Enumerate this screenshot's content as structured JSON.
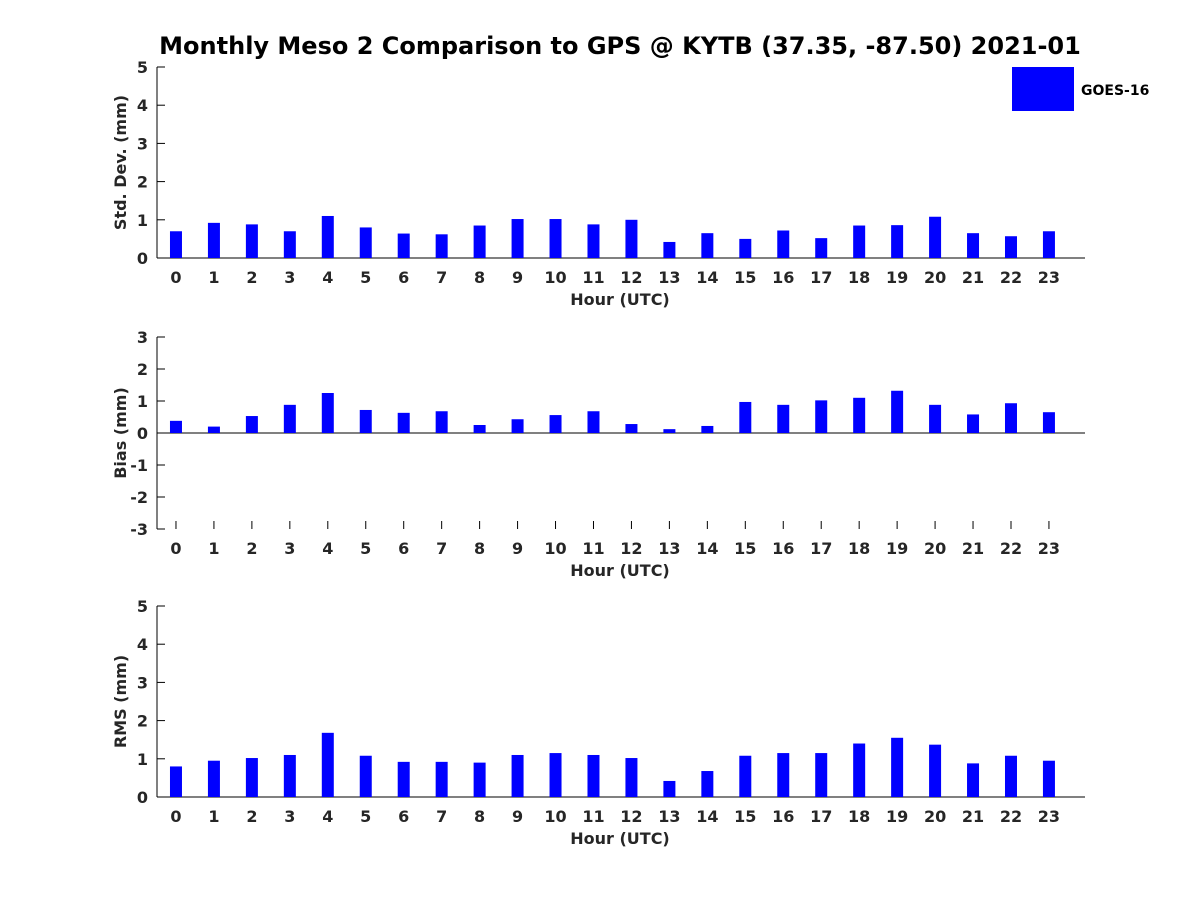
{
  "chart_data": {
    "title": "Monthly Meso 2 Comparison to GPS @ KYTB (37.35, -87.50) 2021-01",
    "legend": {
      "label": "GOES-16",
      "color": "#0000ff",
      "placement": "top-right"
    },
    "panels": [
      {
        "type": "bar",
        "ylabel": "Std. Dev. (mm)",
        "xlabel": "Hour (UTC)",
        "ylim": [
          0,
          5
        ],
        "yticks": [
          0,
          1,
          2,
          3,
          4,
          5
        ],
        "categories": [
          "0",
          "1",
          "2",
          "3",
          "4",
          "5",
          "6",
          "7",
          "8",
          "9",
          "10",
          "11",
          "12",
          "13",
          "14",
          "15",
          "16",
          "17",
          "18",
          "19",
          "20",
          "21",
          "22",
          "23"
        ],
        "series": [
          {
            "name": "GOES-16",
            "values": [
              0.7,
              0.92,
              0.88,
              0.7,
              1.1,
              0.8,
              0.64,
              0.62,
              0.85,
              1.02,
              1.02,
              0.88,
              1.0,
              0.42,
              0.65,
              0.5,
              0.72,
              0.52,
              0.85,
              0.86,
              1.08,
              0.65,
              0.57,
              0.7
            ]
          }
        ]
      },
      {
        "type": "bar",
        "ylabel": "Bias (mm)",
        "xlabel": "Hour (UTC)",
        "ylim": [
          -3,
          3
        ],
        "yticks": [
          -3,
          -2,
          -1,
          0,
          1,
          2,
          3
        ],
        "categories": [
          "0",
          "1",
          "2",
          "3",
          "4",
          "5",
          "6",
          "7",
          "8",
          "9",
          "10",
          "11",
          "12",
          "13",
          "14",
          "15",
          "16",
          "17",
          "18",
          "19",
          "20",
          "21",
          "22",
          "23"
        ],
        "series": [
          {
            "name": "GOES-16",
            "values": [
              0.38,
              0.2,
              0.53,
              0.88,
              1.25,
              0.72,
              0.63,
              0.68,
              0.25,
              0.43,
              0.56,
              0.68,
              0.28,
              0.12,
              0.22,
              0.97,
              0.88,
              1.02,
              1.1,
              1.32,
              0.88,
              0.58,
              0.93,
              0.65
            ]
          }
        ]
      },
      {
        "type": "bar",
        "ylabel": "RMS (mm)",
        "xlabel": "Hour (UTC)",
        "ylim": [
          0,
          5
        ],
        "yticks": [
          0,
          1,
          2,
          3,
          4,
          5
        ],
        "categories": [
          "0",
          "1",
          "2",
          "3",
          "4",
          "5",
          "6",
          "7",
          "8",
          "9",
          "10",
          "11",
          "12",
          "13",
          "14",
          "15",
          "16",
          "17",
          "18",
          "19",
          "20",
          "21",
          "22",
          "23"
        ],
        "series": [
          {
            "name": "GOES-16",
            "values": [
              0.8,
              0.95,
              1.02,
              1.1,
              1.68,
              1.08,
              0.92,
              0.92,
              0.9,
              1.1,
              1.15,
              1.1,
              1.02,
              0.42,
              0.68,
              1.08,
              1.15,
              1.15,
              1.4,
              1.55,
              1.37,
              0.88,
              1.08,
              0.95
            ]
          }
        ]
      }
    ]
  }
}
